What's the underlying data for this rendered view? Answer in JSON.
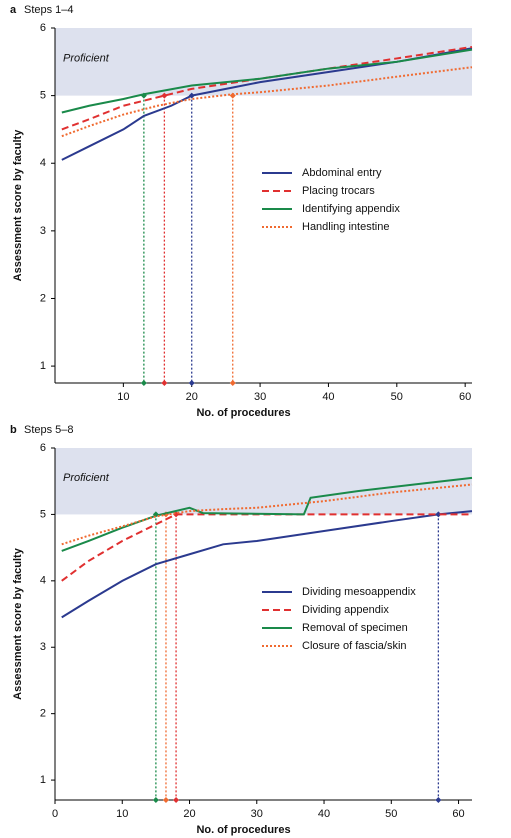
{
  "chart_data": [
    {
      "type": "line",
      "panel": "a",
      "title": "Steps 1–4",
      "x_label": "No. of procedures",
      "y_label": "Assessment score by faculty",
      "band": [
        5,
        6
      ],
      "band_label": "Proficient",
      "xlim": [
        0,
        61
      ],
      "ylim": [
        0.75,
        6
      ],
      "xticks": [
        10,
        20,
        30,
        40,
        50,
        60
      ],
      "yticks": [
        1,
        2,
        3,
        4,
        5,
        6
      ],
      "series": [
        {
          "name": "Abdominal entry",
          "color": "#2b3a8f",
          "dash": "solid",
          "x": [
            1,
            5,
            10,
            13,
            17,
            20,
            25,
            30,
            40,
            50,
            61
          ],
          "values": [
            4.05,
            4.25,
            4.5,
            4.7,
            4.85,
            5.0,
            5.1,
            5.2,
            5.35,
            5.5,
            5.7
          ]
        },
        {
          "name": "Placing trocars",
          "color": "#e03030",
          "dash": "dashed",
          "x": [
            1,
            5,
            10,
            16,
            20,
            30,
            40,
            50,
            61
          ],
          "values": [
            4.5,
            4.65,
            4.85,
            5.0,
            5.1,
            5.25,
            5.4,
            5.55,
            5.72
          ]
        },
        {
          "name": "Identifying appendix",
          "color": "#1a8a4a",
          "dash": "solid",
          "x": [
            1,
            5,
            10,
            13,
            20,
            30,
            40,
            50,
            61
          ],
          "values": [
            4.75,
            4.85,
            4.95,
            5.02,
            5.15,
            5.25,
            5.4,
            5.5,
            5.68
          ]
        },
        {
          "name": "Handling intestine",
          "color": "#f06a30",
          "dash": "dotted",
          "x": [
            1,
            5,
            10,
            15,
            20,
            26,
            30,
            40,
            50,
            61
          ],
          "values": [
            4.4,
            4.55,
            4.72,
            4.85,
            4.95,
            5.02,
            5.05,
            5.15,
            5.28,
            5.42
          ]
        }
      ],
      "crossings": [
        {
          "x": 13,
          "y": 5,
          "color": "#1a8a4a"
        },
        {
          "x": 16,
          "y": 5,
          "color": "#e03030"
        },
        {
          "x": 20,
          "y": 5,
          "color": "#2b3a8f"
        },
        {
          "x": 26,
          "y": 5,
          "color": "#f06a30"
        }
      ]
    },
    {
      "type": "line",
      "panel": "b",
      "title": "Steps 5–8",
      "x_label": "No. of procedures",
      "y_label": "Assessment score by faculty",
      "band": [
        5,
        6
      ],
      "band_label": "Proficient",
      "xlim": [
        0,
        62
      ],
      "ylim": [
        0.7,
        6
      ],
      "xticks": [
        0,
        10,
        20,
        30,
        40,
        50,
        60
      ],
      "yticks": [
        1,
        2,
        3,
        4,
        5,
        6
      ],
      "series": [
        {
          "name": "Dividing mesoappendix",
          "color": "#2b3a8f",
          "dash": "solid",
          "x": [
            1,
            5,
            10,
            15,
            20,
            25,
            30,
            40,
            50,
            57,
            62
          ],
          "values": [
            3.45,
            3.7,
            4.0,
            4.25,
            4.4,
            4.55,
            4.6,
            4.75,
            4.9,
            5.0,
            5.05
          ]
        },
        {
          "name": "Dividing appendix",
          "color": "#e03030",
          "dash": "dashed",
          "x": [
            1,
            5,
            10,
            16,
            18,
            30,
            40,
            62
          ],
          "values": [
            4.0,
            4.3,
            4.6,
            4.9,
            5.0,
            5.0,
            5.0,
            5.0
          ]
        },
        {
          "name": "Removal of specimen",
          "color": "#1a8a4a",
          "dash": "solid",
          "x": [
            1,
            5,
            10,
            15,
            20,
            22,
            37,
            38,
            45,
            55,
            62
          ],
          "values": [
            4.45,
            4.6,
            4.8,
            4.98,
            5.1,
            5.02,
            5.0,
            5.25,
            5.35,
            5.47,
            5.55
          ]
        },
        {
          "name": "Closure of fascia/skin",
          "color": "#f06a30",
          "dash": "dotted",
          "x": [
            1,
            5,
            10,
            15,
            20,
            25,
            30,
            40,
            50,
            62
          ],
          "values": [
            4.55,
            4.68,
            4.82,
            4.97,
            5.05,
            5.08,
            5.1,
            5.2,
            5.33,
            5.45
          ]
        }
      ],
      "crossings": [
        {
          "x": 15,
          "y": 5,
          "color": "#1a8a4a"
        },
        {
          "x": 16.5,
          "y": 5,
          "color": "#f06a30"
        },
        {
          "x": 18,
          "y": 5,
          "color": "#e03030"
        },
        {
          "x": 57,
          "y": 5,
          "color": "#2b3a8f"
        }
      ]
    }
  ]
}
